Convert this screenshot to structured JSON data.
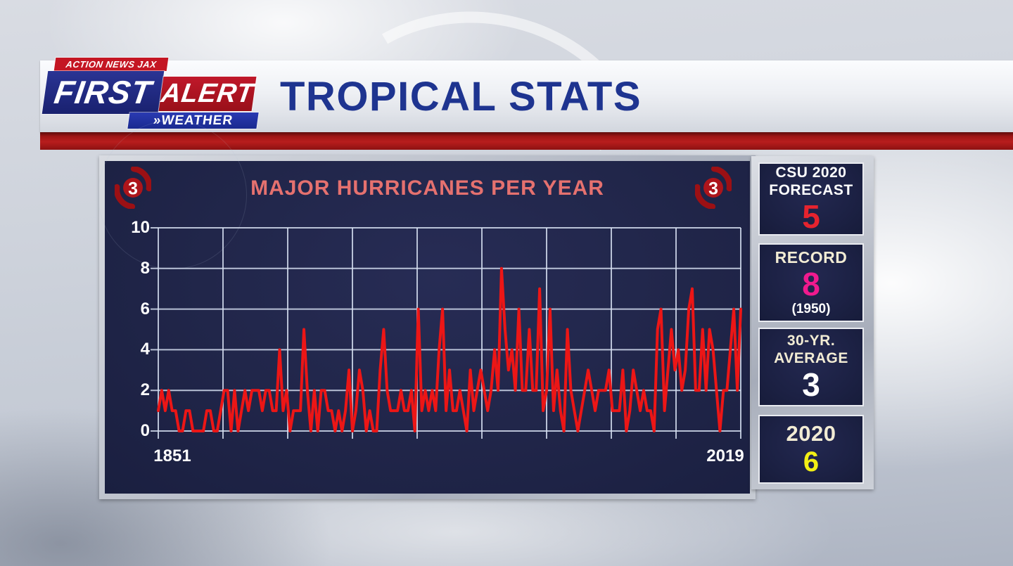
{
  "header": {
    "station_tagline": "ACTION NEWS JAX",
    "brand_first": "FIRST",
    "brand_alert": "ALERT",
    "brand_weather": "»WEATHER",
    "page_title": "TROPICAL STATS"
  },
  "chart_panel": {
    "title": "MAJOR HURRICANES PER YEAR",
    "icon_category": "3",
    "x_first_label": "1851",
    "x_last_label": "2019",
    "y_ticks": [
      "10",
      "8",
      "6",
      "4",
      "2",
      "0"
    ]
  },
  "chart_data": {
    "type": "line",
    "title": "MAJOR HURRICANES PER YEAR",
    "x_start": 1851,
    "x_end": 2019,
    "x_tick_labels": [
      "1851",
      "2019"
    ],
    "ylim": [
      0,
      10
    ],
    "y_ticks": [
      0,
      2,
      4,
      6,
      8,
      10
    ],
    "grid": true,
    "v_gridline_count": 10,
    "legend": "none",
    "series": [
      {
        "name": "Major hurricanes per year",
        "color": "#ec1616",
        "values": [
          1,
          2,
          1,
          2,
          1,
          1,
          0,
          0,
          1,
          1,
          0,
          0,
          0,
          0,
          1,
          1,
          0,
          0,
          1,
          2,
          2,
          0,
          2,
          0,
          1,
          2,
          1,
          2,
          2,
          2,
          1,
          2,
          2,
          1,
          1,
          4,
          1,
          2,
          0,
          1,
          1,
          1,
          5,
          2,
          0,
          2,
          0,
          2,
          2,
          1,
          1,
          0,
          1,
          0,
          1,
          3,
          0,
          1,
          3,
          2,
          0,
          1,
          0,
          0,
          3,
          5,
          2,
          1,
          1,
          1,
          2,
          1,
          1,
          2,
          0,
          6,
          1,
          2,
          1,
          2,
          1,
          4,
          6,
          1,
          3,
          1,
          1,
          2,
          1,
          0,
          3,
          1,
          2,
          3,
          2,
          1,
          2,
          4,
          2,
          8,
          5,
          3,
          4,
          2,
          6,
          2,
          2,
          5,
          2,
          2,
          7,
          1,
          2,
          6,
          1,
          3,
          1,
          0,
          5,
          2,
          1,
          0,
          1,
          2,
          3,
          2,
          1,
          2,
          2,
          2,
          3,
          1,
          1,
          1,
          3,
          0,
          1,
          3,
          2,
          1,
          2,
          1,
          1,
          0,
          5,
          6,
          1,
          3,
          5,
          3,
          4,
          2,
          3,
          6,
          7,
          2,
          2,
          5,
          2,
          5,
          4,
          2,
          0,
          2,
          2,
          4,
          6,
          2,
          6
        ]
      }
    ]
  },
  "stats": [
    {
      "label1": "CSU 2020",
      "label2": "FORECAST",
      "value": "5",
      "value_color": "#e6232e",
      "note": ""
    },
    {
      "label1": "RECORD",
      "label2": "",
      "value": "8",
      "value_color": "#f01a8e",
      "note": "(1950)"
    },
    {
      "label1": "30-YR.",
      "label2": "AVERAGE",
      "value": "3",
      "value_color": "#ffffff",
      "note": ""
    },
    {
      "label1": "2020",
      "label2": "",
      "value": "6",
      "value_color": "#f2ef15",
      "note": ""
    }
  ],
  "colors": {
    "title_blue": "#1e3490",
    "panel_navy": "#1c2144",
    "chart_title": "#e5716f",
    "line_red": "#ec1616",
    "grid": "rgba(212,221,238,0.85)",
    "axis_text": "#ffffff",
    "red_bar": "#a01515",
    "silver_frame": "#b6bbc6",
    "hurricane_icon": "#a5131a",
    "cream_label": "#f2ecd4"
  }
}
